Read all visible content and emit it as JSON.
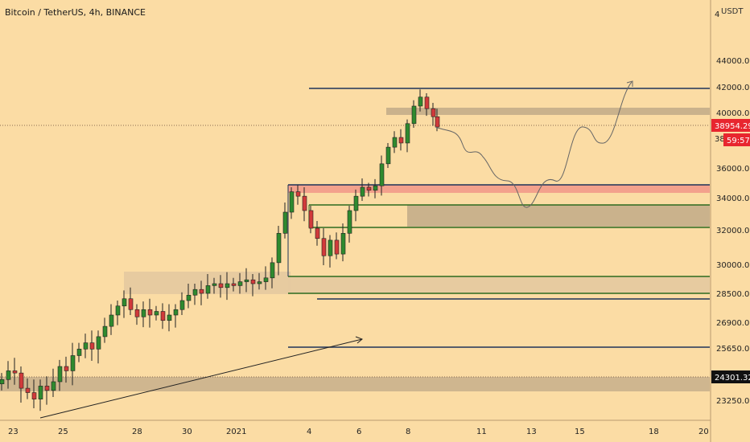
{
  "header": {
    "title": "Bitcoin / TetherUS, 4h, BINANCE",
    "unit": "USDT"
  },
  "colors": {
    "background": "#fbdca4",
    "up": "#2f8a2f",
    "down": "#d13a3a",
    "zone_gray": "#c4ad8a",
    "zone_red": "#f29a8a",
    "line_navy": "#1e3358",
    "line_green": "#2d6b1f",
    "price_tag": "#e8262f",
    "ref_tag": "#111111"
  },
  "chart_data": {
    "type": "candlestick",
    "y_ticks": [
      "44000.00",
      "42000.00",
      "40000.00",
      "36000.00",
      "34000.00",
      "32000.00",
      "30000.00",
      "28500.00",
      "26900.00",
      "25650.00",
      "23250.00"
    ],
    "x_ticks": [
      "23",
      "25",
      "28",
      "30",
      "2021",
      "4",
      "6",
      "8",
      "11",
      "13",
      "15",
      "18",
      "20"
    ],
    "current_price": "38954.29",
    "countdown": "59:57",
    "reference_price": "24301.32",
    "partial_top_tick": "4",
    "partial_tick": "38"
  }
}
